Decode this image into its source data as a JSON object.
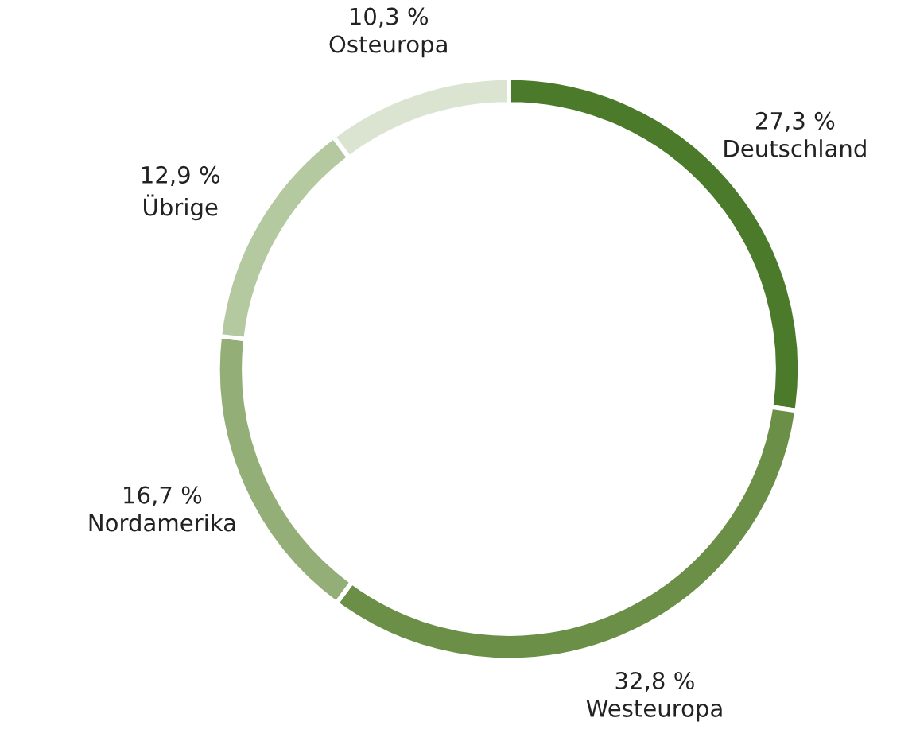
{
  "chart_data": {
    "type": "donut",
    "categories": [
      "Deutschland",
      "Westeuropa",
      "Nordamerika",
      "Übrige",
      "Osteuropa"
    ],
    "values": [
      27.3,
      32.8,
      16.7,
      12.9,
      10.3
    ],
    "value_labels": [
      "27,3 %",
      "32,8 %",
      "16,7 %",
      "12,9 %",
      "10,3 %"
    ],
    "colors": [
      "#4a7a2a",
      "#6b8f47",
      "#94ae78",
      "#b5c9a1",
      "#dbe4d0"
    ],
    "legend": false
  }
}
